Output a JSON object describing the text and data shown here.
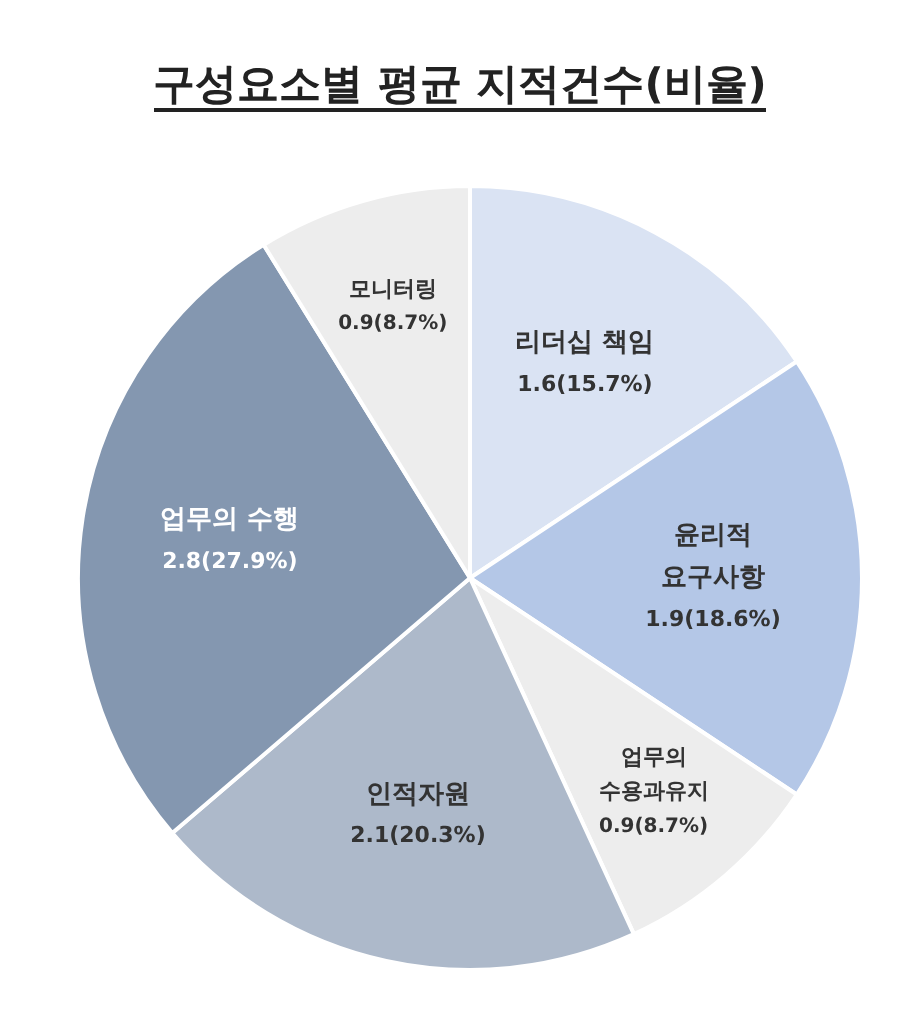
{
  "chart_data": {
    "type": "pie",
    "title": "구성요소별 평균 지적건수(비율)",
    "categories": [
      "리더십 책임",
      "윤리적 요구사항",
      "업무의 수용과유지",
      "인적자원",
      "업무의 수행",
      "모니터링"
    ],
    "values": [
      1.6,
      1.9,
      0.9,
      2.1,
      2.8,
      0.9
    ],
    "value_labels": [
      "1.6(15.7%)",
      "1.9(18.6%)",
      "0.9(8.7%)",
      "2.1(20.3%)",
      "2.8(27.9%)",
      "0.9(8.7%)"
    ],
    "colors": [
      "#dae3f3",
      "#b4c7e7",
      "#ededed",
      "#adb9ca",
      "#8497b0",
      "#ededed"
    ]
  }
}
